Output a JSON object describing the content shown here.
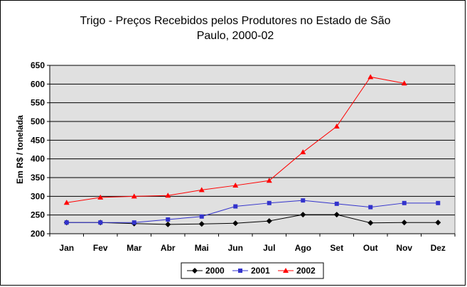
{
  "chart_data": {
    "type": "line",
    "title": "Trigo - Preços Recebidos pelos Produtores no Estado de São Paulo, 2000-02",
    "title_lines": [
      "Trigo - Preços Recebidos pelos Produtores no Estado de São",
      "Paulo, 2000-02"
    ],
    "ylabel": "Em R$ / tonelada",
    "xlabel": "",
    "ylim": [
      200,
      650
    ],
    "yticks": [
      200,
      250,
      300,
      350,
      400,
      450,
      500,
      550,
      600,
      650
    ],
    "grid": true,
    "legend_position": "bottom",
    "categories": [
      "Jan",
      "Fev",
      "Mar",
      "Abr",
      "Mai",
      "Jun",
      "Jul",
      "Ago",
      "Set",
      "Out",
      "Nov",
      "Dez"
    ],
    "series": [
      {
        "name": "2000",
        "color": "#000000",
        "marker": "diamond",
        "values": [
          230,
          230,
          227,
          225,
          226,
          228,
          234,
          251,
          251,
          229,
          230,
          230
        ]
      },
      {
        "name": "2001",
        "color": "#3333cc",
        "marker": "square",
        "values": [
          230,
          230,
          230,
          238,
          246,
          273,
          282,
          289,
          280,
          271,
          282,
          282
        ]
      },
      {
        "name": "2002",
        "color": "#ff0000",
        "marker": "triangle",
        "values": [
          283,
          297,
          300,
          302,
          317,
          329,
          342,
          418,
          487,
          619,
          602,
          null
        ]
      }
    ],
    "plot_background": "#e0e0e0"
  }
}
